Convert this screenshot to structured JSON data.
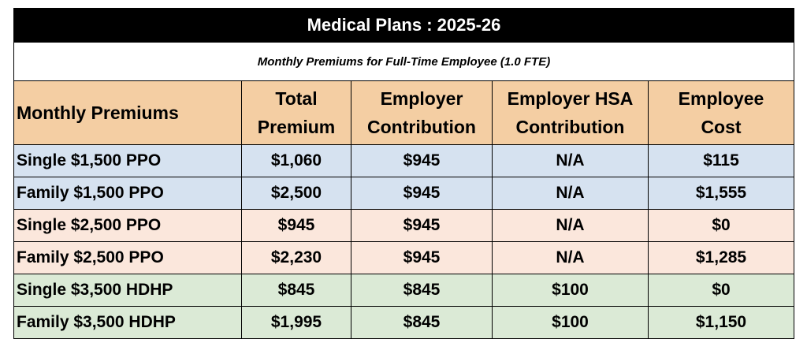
{
  "title": "Medical Plans : 2025-26",
  "subtitle": "Monthly Premiums for Full-Time Employee (1.0 FTE)",
  "columns": {
    "plan": "Monthly Premiums",
    "total_premium_line1": "Total",
    "total_premium_line2": "Premium",
    "employer_contribution_line1": "Employer",
    "employer_contribution_line2": "Contribution",
    "employer_hsa_line1": "Employer HSA",
    "employer_hsa_line2": "Contribution",
    "employee_cost_line1": "Employee",
    "employee_cost_line2": "Cost"
  },
  "colors": {
    "title_bg": "#000000",
    "header_bg": "#f4cea3",
    "ppo_1500_bg": "#d6e2f0",
    "ppo_2500_bg": "#fbe7dc",
    "hdhp_3500_bg": "#dbead6"
  },
  "rows": [
    {
      "plan": "Single $1,500 PPO",
      "total_premium": "$1,060",
      "employer_contribution": "$945",
      "employer_hsa": "N/A",
      "employee_cost": "$115"
    },
    {
      "plan": "Family $1,500 PPO",
      "total_premium": "$2,500",
      "employer_contribution": "$945",
      "employer_hsa": "N/A",
      "employee_cost": "$1,555"
    },
    {
      "plan": "Single $2,500 PPO",
      "total_premium": "$945",
      "employer_contribution": "$945",
      "employer_hsa": "N/A",
      "employee_cost": "$0"
    },
    {
      "plan": "Family $2,500 PPO",
      "total_premium": "$2,230",
      "employer_contribution": "$945",
      "employer_hsa": "N/A",
      "employee_cost": "$1,285"
    },
    {
      "plan": "Single $3,500 HDHP",
      "total_premium": "$845",
      "employer_contribution": "$845",
      "employer_hsa": "$100",
      "employee_cost": "$0"
    },
    {
      "plan": "Family $3,500 HDHP",
      "total_premium": "$1,995",
      "employer_contribution": "$845",
      "employer_hsa": "$100",
      "employee_cost": "$1,150"
    }
  ]
}
